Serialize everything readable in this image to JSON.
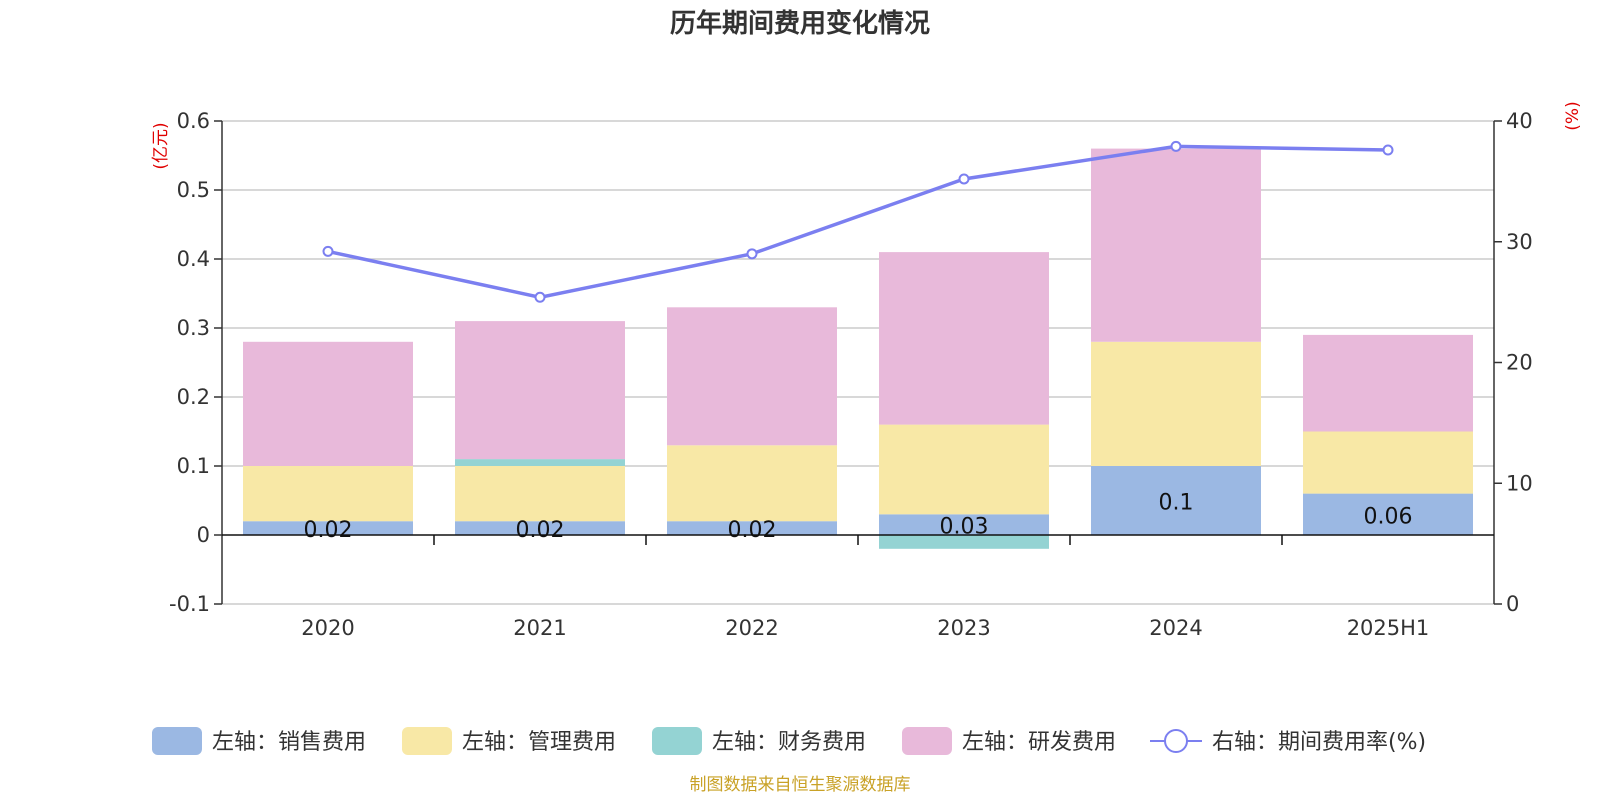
{
  "chart_data": {
    "type": "bar",
    "title": "历年期间费用变化情况",
    "categories": [
      "2020",
      "2021",
      "2022",
      "2023",
      "2024",
      "2025H1"
    ],
    "stacked": true,
    "series": [
      {
        "name": "左轴：销售费用",
        "axis": "left",
        "color": "#9bb8e3",
        "values": [
          0.02,
          0.02,
          0.02,
          0.03,
          0.1,
          0.06
        ],
        "labels": [
          "0.02",
          "0.02",
          "0.02",
          "0.03",
          "0.1",
          "0.06"
        ]
      },
      {
        "name": "左轴：管理费用",
        "axis": "left",
        "color": "#f8e8a6",
        "values": [
          0.08,
          0.08,
          0.11,
          0.13,
          0.18,
          0.09
        ]
      },
      {
        "name": "左轴：财务费用",
        "axis": "left",
        "color": "#94d3d3",
        "values": [
          0,
          0.01,
          0,
          -0.02,
          0,
          0
        ]
      },
      {
        "name": "左轴：研发费用",
        "axis": "left",
        "color": "#e8b9da",
        "values": [
          0.18,
          0.2,
          0.2,
          0.25,
          0.28,
          0.14
        ]
      }
    ],
    "line_series": {
      "name": "右轴：期间费用率(%)",
      "axis": "right",
      "type": "line",
      "color": "#7b7ff0",
      "values": [
        29.2,
        25.4,
        29.0,
        35.2,
        37.9,
        37.6
      ]
    },
    "left_axis": {
      "unit": "(亿元)",
      "min": -0.1,
      "max": 0.6,
      "ticks": [
        "-0.1",
        "0",
        "0.1",
        "0.2",
        "0.3",
        "0.4",
        "0.5",
        "0.6"
      ]
    },
    "right_axis": {
      "unit": "(%)",
      "min": 0,
      "max": 40,
      "ticks": [
        "0",
        "10",
        "20",
        "30",
        "40"
      ]
    },
    "grid": true,
    "legend_position": "bottom"
  },
  "source_note": "制图数据来自恒生聚源数据库"
}
